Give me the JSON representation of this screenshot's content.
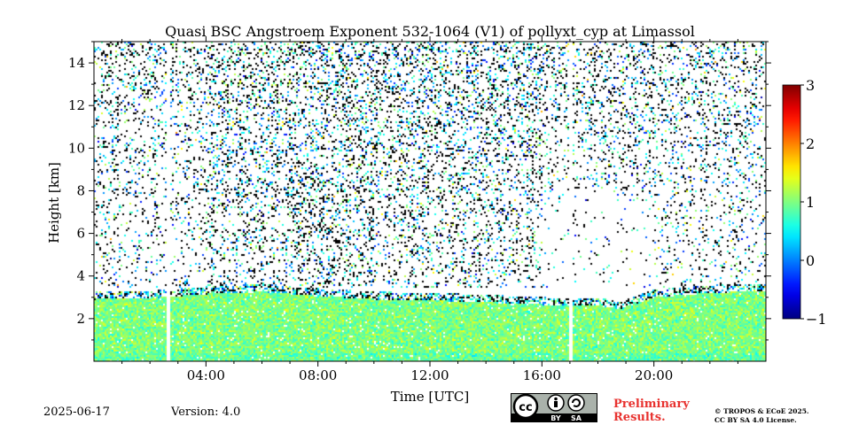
{
  "chart_data": {
    "type": "heatmap",
    "title": "Quasi BSC Angstroem Exponent 532-1064 (V1) of pollyxt_cyp at Limassol",
    "xlabel": "Time [UTC]",
    "ylabel": "Height [km]",
    "xlim": [
      0,
      24
    ],
    "ylim": [
      0,
      15
    ],
    "x_ticks": [
      {
        "value": 4,
        "label": "04:00"
      },
      {
        "value": 8,
        "label": "08:00"
      },
      {
        "value": 12,
        "label": "12:00"
      },
      {
        "value": 16,
        "label": "16:00"
      },
      {
        "value": 20,
        "label": "20:00"
      }
    ],
    "y_ticks": [
      {
        "value": 2,
        "label": "2"
      },
      {
        "value": 4,
        "label": "4"
      },
      {
        "value": 6,
        "label": "6"
      },
      {
        "value": 8,
        "label": "8"
      },
      {
        "value": 10,
        "label": "10"
      },
      {
        "value": 12,
        "label": "12"
      },
      {
        "value": 14,
        "label": "14"
      }
    ],
    "colorbar": {
      "range": [
        -1,
        3
      ],
      "ticks": [
        {
          "value": -1,
          "label": "−1"
        },
        {
          "value": 0,
          "label": "0"
        },
        {
          "value": 1,
          "label": "1"
        },
        {
          "value": 2,
          "label": "2"
        },
        {
          "value": 3,
          "label": "3"
        }
      ],
      "colormap": "jet"
    },
    "data_gaps_utc": [
      [
        2.55,
        2.7
      ],
      [
        16.95,
        17.08
      ]
    ],
    "boundary_layer_top_km": [
      [
        0,
        2.95
      ],
      [
        2,
        3.0
      ],
      [
        3,
        3.1
      ],
      [
        4,
        3.2
      ],
      [
        6,
        3.3
      ],
      [
        8,
        3.1
      ],
      [
        10,
        2.95
      ],
      [
        12,
        2.9
      ],
      [
        14,
        2.8
      ],
      [
        16,
        2.7
      ],
      [
        17,
        2.65
      ],
      [
        18,
        2.65
      ],
      [
        18.8,
        2.5
      ],
      [
        20,
        3.05
      ],
      [
        22,
        3.25
      ],
      [
        24,
        3.35
      ]
    ],
    "boundary_layer_mean_exponent": 1.0,
    "aloft_region_km": [
      3.5,
      15
    ],
    "aloft_mean_exponent": 0.5
  },
  "footer": {
    "date": "2025-06-17",
    "version": "Version: 4.0",
    "license_badge_icon": "cc-by-sa-icon",
    "license_badge_by": "BY",
    "license_badge_sa": "SA",
    "preliminary_line1": "Preliminary",
    "preliminary_line2": "Results.",
    "copyright_line1": "© TROPOS & ECoE 2025.",
    "copyright_line2": "CC BY SA 4.0 License."
  }
}
